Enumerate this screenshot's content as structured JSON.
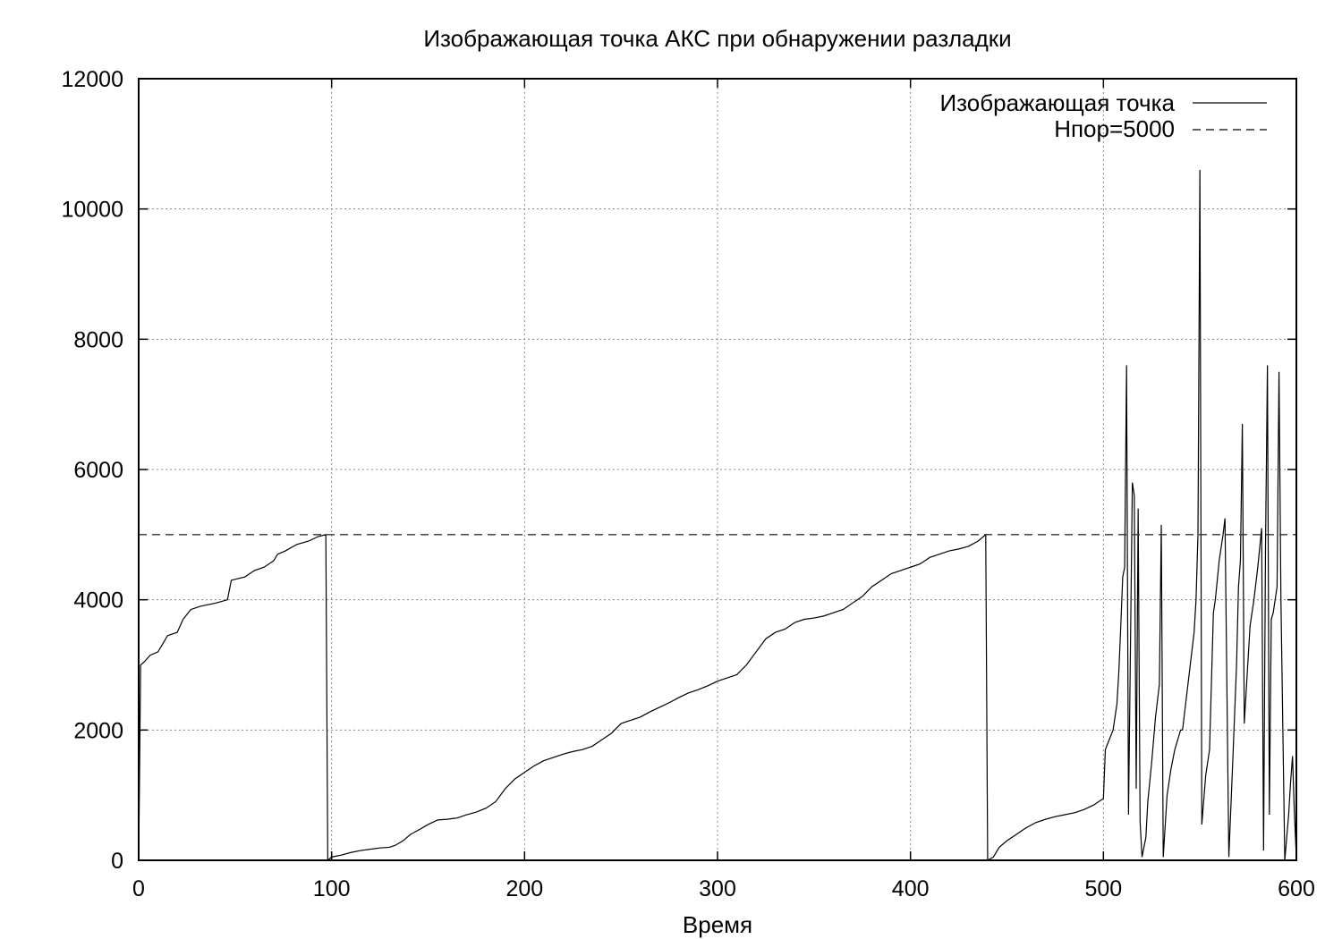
{
  "chart_data": {
    "type": "line",
    "title": "Изображающая точка АКС при обнаружении разладки",
    "xlabel": "Время",
    "ylabel": "",
    "xlim": [
      0,
      600
    ],
    "ylim": [
      0,
      12000
    ],
    "xticks": [
      "0",
      "100",
      "200",
      "300",
      "400",
      "500",
      "600"
    ],
    "yticks": [
      "0",
      "2000",
      "4000",
      "6000",
      "8000",
      "10000",
      "12000"
    ],
    "grid": true,
    "legend_position": "top-right",
    "series": [
      {
        "name": "Изображающая точка",
        "style": "solid",
        "points": [
          [
            0,
            0
          ],
          [
            1,
            3000
          ],
          [
            3,
            3050
          ],
          [
            6,
            3150
          ],
          [
            10,
            3200
          ],
          [
            12,
            3300
          ],
          [
            15,
            3450
          ],
          [
            20,
            3500
          ],
          [
            23,
            3700
          ],
          [
            27,
            3850
          ],
          [
            32,
            3900
          ],
          [
            40,
            3950
          ],
          [
            46,
            4000
          ],
          [
            48,
            4300
          ],
          [
            55,
            4350
          ],
          [
            60,
            4450
          ],
          [
            65,
            4500
          ],
          [
            70,
            4600
          ],
          [
            72,
            4700
          ],
          [
            76,
            4750
          ],
          [
            82,
            4850
          ],
          [
            88,
            4900
          ],
          [
            93,
            4970
          ],
          [
            97,
            5000
          ],
          [
            98,
            0
          ],
          [
            100,
            50
          ],
          [
            105,
            80
          ],
          [
            110,
            120
          ],
          [
            115,
            150
          ],
          [
            120,
            170
          ],
          [
            125,
            190
          ],
          [
            130,
            200
          ],
          [
            133,
            230
          ],
          [
            137,
            300
          ],
          [
            141,
            400
          ],
          [
            146,
            480
          ],
          [
            150,
            550
          ],
          [
            155,
            620
          ],
          [
            160,
            630
          ],
          [
            165,
            650
          ],
          [
            170,
            700
          ],
          [
            175,
            740
          ],
          [
            180,
            800
          ],
          [
            185,
            900
          ],
          [
            190,
            1100
          ],
          [
            195,
            1250
          ],
          [
            200,
            1350
          ],
          [
            205,
            1450
          ],
          [
            210,
            1530
          ],
          [
            215,
            1580
          ],
          [
            220,
            1630
          ],
          [
            225,
            1670
          ],
          [
            230,
            1700
          ],
          [
            235,
            1750
          ],
          [
            240,
            1850
          ],
          [
            245,
            1950
          ],
          [
            250,
            2100
          ],
          [
            255,
            2150
          ],
          [
            260,
            2200
          ],
          [
            265,
            2280
          ],
          [
            270,
            2350
          ],
          [
            275,
            2420
          ],
          [
            280,
            2500
          ],
          [
            285,
            2570
          ],
          [
            290,
            2620
          ],
          [
            295,
            2680
          ],
          [
            300,
            2750
          ],
          [
            305,
            2800
          ],
          [
            310,
            2850
          ],
          [
            315,
            3000
          ],
          [
            320,
            3200
          ],
          [
            325,
            3400
          ],
          [
            330,
            3500
          ],
          [
            335,
            3550
          ],
          [
            340,
            3650
          ],
          [
            345,
            3700
          ],
          [
            350,
            3720
          ],
          [
            355,
            3750
          ],
          [
            360,
            3800
          ],
          [
            365,
            3850
          ],
          [
            370,
            3950
          ],
          [
            375,
            4050
          ],
          [
            380,
            4200
          ],
          [
            385,
            4300
          ],
          [
            390,
            4400
          ],
          [
            395,
            4450
          ],
          [
            400,
            4500
          ],
          [
            405,
            4550
          ],
          [
            410,
            4650
          ],
          [
            415,
            4700
          ],
          [
            420,
            4750
          ],
          [
            425,
            4780
          ],
          [
            430,
            4820
          ],
          [
            435,
            4900
          ],
          [
            439,
            5000
          ],
          [
            440,
            0
          ],
          [
            443,
            50
          ],
          [
            446,
            200
          ],
          [
            450,
            300
          ],
          [
            455,
            400
          ],
          [
            460,
            500
          ],
          [
            465,
            580
          ],
          [
            470,
            630
          ],
          [
            475,
            670
          ],
          [
            480,
            700
          ],
          [
            485,
            730
          ],
          [
            490,
            780
          ],
          [
            495,
            850
          ],
          [
            500,
            950
          ],
          [
            501,
            1700
          ],
          [
            503,
            1850
          ],
          [
            505,
            2000
          ],
          [
            507,
            2400
          ],
          [
            508,
            2900
          ],
          [
            509,
            3600
          ],
          [
            510,
            4350
          ],
          [
            511,
            4500
          ],
          [
            512,
            7600
          ],
          [
            513,
            700
          ],
          [
            515,
            5800
          ],
          [
            516,
            5600
          ],
          [
            517,
            1100
          ],
          [
            518,
            5400
          ],
          [
            519,
            600
          ],
          [
            520,
            50
          ],
          [
            522,
            350
          ],
          [
            523,
            900
          ],
          [
            525,
            1500
          ],
          [
            527,
            2200
          ],
          [
            529,
            2700
          ],
          [
            530,
            5150
          ],
          [
            531,
            50
          ],
          [
            533,
            1000
          ],
          [
            535,
            1400
          ],
          [
            537,
            1700
          ],
          [
            539,
            1900
          ],
          [
            540,
            2000
          ],
          [
            541,
            2000
          ],
          [
            543,
            2500
          ],
          [
            545,
            3000
          ],
          [
            547,
            3500
          ],
          [
            548,
            4000
          ],
          [
            549,
            5000
          ],
          [
            550,
            10600
          ],
          [
            551,
            550
          ],
          [
            553,
            1300
          ],
          [
            555,
            1700
          ],
          [
            557,
            3800
          ],
          [
            558,
            4000
          ],
          [
            560,
            4600
          ],
          [
            562,
            5000
          ],
          [
            563,
            5250
          ],
          [
            565,
            50
          ],
          [
            567,
            1500
          ],
          [
            569,
            3000
          ],
          [
            570,
            4200
          ],
          [
            571,
            4600
          ],
          [
            572,
            6700
          ],
          [
            573,
            2100
          ],
          [
            574,
            2600
          ],
          [
            576,
            3600
          ],
          [
            578,
            4000
          ],
          [
            580,
            4500
          ],
          [
            582,
            5100
          ],
          [
            583,
            150
          ],
          [
            584,
            4800
          ],
          [
            585,
            7600
          ],
          [
            586,
            700
          ],
          [
            587,
            3700
          ],
          [
            588,
            3800
          ],
          [
            590,
            4200
          ],
          [
            591,
            7500
          ],
          [
            592,
            4000
          ],
          [
            593,
            2000
          ],
          [
            594,
            0
          ],
          [
            596,
            700
          ],
          [
            597,
            1200
          ],
          [
            598,
            1600
          ],
          [
            599,
            700
          ],
          [
            600,
            50
          ]
        ]
      },
      {
        "name": "Hпор=5000",
        "style": "dashed",
        "points": [
          [
            0,
            5000
          ],
          [
            600,
            5000
          ]
        ]
      }
    ]
  }
}
